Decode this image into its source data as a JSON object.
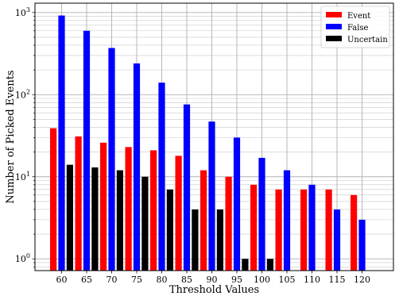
{
  "chart_data": {
    "type": "bar",
    "xlabel": "Threshold Values",
    "ylabel": "Number of Picked Events",
    "y_scale": "log",
    "ylim": [
      0.72,
      1300
    ],
    "y_ticks": [
      {
        "value": 1,
        "base": "10",
        "exp": "0"
      },
      {
        "value": 10,
        "base": "10",
        "exp": "1"
      },
      {
        "value": 100,
        "base": "10",
        "exp": "2"
      },
      {
        "value": 1000,
        "base": "10",
        "exp": "3"
      }
    ],
    "grid": "both",
    "legend_position": "top-right",
    "categories": [
      "60",
      "65",
      "70",
      "75",
      "80",
      "85",
      "90",
      "95",
      "100",
      "105",
      "110",
      "115",
      "120"
    ],
    "series": [
      {
        "name": "Event",
        "color": "#ff0000",
        "values": [
          39,
          31,
          26,
          23,
          21,
          18,
          12,
          10,
          8,
          7,
          7,
          7,
          6
        ]
      },
      {
        "name": "False",
        "color": "#0000ff",
        "values": [
          920,
          600,
          370,
          240,
          140,
          76,
          47,
          30,
          17,
          12,
          8,
          4,
          3
        ]
      },
      {
        "name": "Uncertain",
        "color": "#000000",
        "values": [
          14,
          13,
          12,
          10,
          7,
          4,
          4,
          1,
          1,
          0,
          0,
          0,
          0
        ]
      }
    ]
  }
}
